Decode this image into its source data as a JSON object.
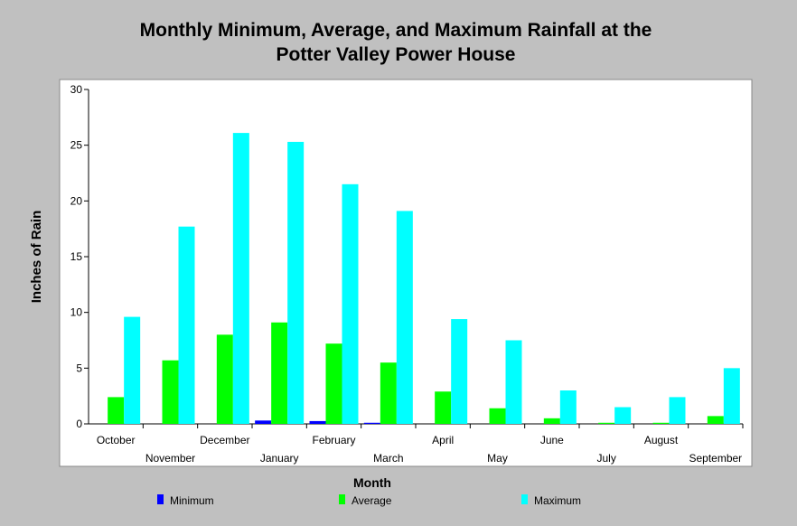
{
  "chart_data": {
    "type": "bar",
    "title_line1": "Monthly Minimum, Average, and Maximum Rainfall at the",
    "title_line2": "Potter Valley Power House",
    "xlabel": "Month",
    "ylabel": "Inches of Rain",
    "ylim": [
      0,
      30
    ],
    "yticks": [
      0,
      5,
      10,
      15,
      20,
      25,
      30
    ],
    "grid": false,
    "legend_position": "bottom",
    "categories": [
      "October",
      "November",
      "December",
      "January",
      "February",
      "March",
      "April",
      "May",
      "June",
      "July",
      "August",
      "September"
    ],
    "series": [
      {
        "name": "Minimum",
        "color": "#0000ff",
        "values": [
          0,
          0,
          0,
          0.3,
          0.25,
          0.1,
          0,
          0,
          0,
          0,
          0,
          0
        ]
      },
      {
        "name": "Average",
        "color": "#00ff00",
        "values": [
          2.4,
          5.7,
          8.0,
          9.1,
          7.2,
          5.5,
          2.9,
          1.4,
          0.5,
          0.1,
          0.1,
          0.7
        ]
      },
      {
        "name": "Maximum",
        "color": "#00ffff",
        "values": [
          9.6,
          17.7,
          26.1,
          25.3,
          21.5,
          19.1,
          9.4,
          7.5,
          3.0,
          1.5,
          2.4,
          5.0
        ]
      }
    ]
  }
}
